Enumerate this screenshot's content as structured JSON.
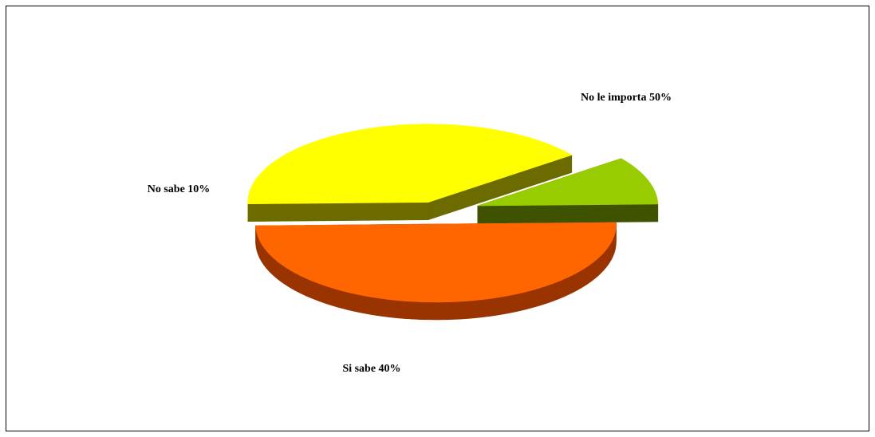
{
  "chart_data": {
    "type": "pie",
    "style": "3d-exploded",
    "categories": [
      "No le importa",
      "Si sabe",
      "No sabe"
    ],
    "values": [
      50,
      40,
      10
    ],
    "labels": [
      "No le importa 50%",
      "Si sabe 40%",
      "No sabe 10%"
    ],
    "colors": {
      "No le importa": {
        "top": "#FF6600",
        "side": "#993300",
        "cut": "#7F2A00"
      },
      "Si sabe": {
        "top": "#FFFF00",
        "side": "#808000",
        "cut": "#6B6B00"
      },
      "No sabe": {
        "top": "#99CC00",
        "side": "#4D6600",
        "cut": "#3E5200"
      }
    },
    "title": "",
    "legend": "none"
  }
}
